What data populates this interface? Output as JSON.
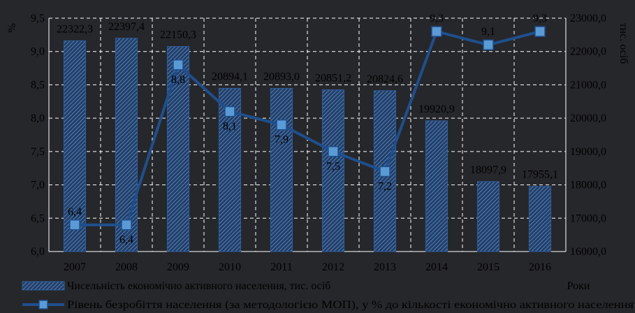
{
  "chart_data": {
    "type": "bar",
    "categories": [
      "2007",
      "2008",
      "2009",
      "2010",
      "2011",
      "2012",
      "2013",
      "2014",
      "2015",
      "2016"
    ],
    "series": [
      {
        "name": "Чисельність економічно активного населення, тис. осіб",
        "type": "bar",
        "axis": "right",
        "values": [
          22322.3,
          22397.4,
          22150.3,
          20894.1,
          20893.0,
          20851.2,
          20824.6,
          19920.9,
          18097.9,
          17955.1
        ],
        "labels": [
          "22322,3",
          "22397,4",
          "22150,3",
          "20894,1",
          "20893,0",
          "20851,2",
          "20824,6",
          "19920,9",
          "18097,9",
          "17955,1"
        ]
      },
      {
        "name": "Рівень безробіття населення (за методологією МОП), у % до кількості економічно активного населення",
        "type": "line",
        "axis": "left",
        "values": [
          6.4,
          6.4,
          8.8,
          8.1,
          7.9,
          7.5,
          7.2,
          9.3,
          9.1,
          9.3
        ],
        "labels": [
          "6,4",
          "6,4",
          "8,8",
          "8,1",
          "7,9",
          "7,5",
          "7,2",
          "9,3",
          "9,1",
          "9,3"
        ]
      }
    ],
    "left_axis": {
      "label": "%",
      "min": 6.0,
      "max": 9.5,
      "ticks": [
        6.0,
        6.5,
        7.0,
        7.5,
        8.0,
        8.5,
        9.0,
        9.5
      ],
      "tick_labels": [
        "6,0",
        "6,5",
        "7,0",
        "7,5",
        "8,0",
        "8,5",
        "9,0",
        "9,5"
      ]
    },
    "right_axis": {
      "label": "тис. осіб",
      "min": 16000,
      "max": 23000,
      "ticks": [
        16000,
        17000,
        18000,
        19000,
        20000,
        21000,
        22000,
        23000
      ],
      "tick_labels": [
        "16000,0",
        "17000,0",
        "18000,0",
        "19000,0",
        "20000,0",
        "21000,0",
        "22000,0",
        "23000,0"
      ]
    },
    "xlabel": "Роки",
    "grid": true,
    "legend_position": "bottom-left",
    "colors": {
      "background": "#26272b",
      "bar": "#1f3f6a",
      "bar_hatch": "#6e8fc0",
      "line": "#1f4f8c",
      "marker": "#5b9bd5",
      "grid": "#ffffff",
      "text": "#000000"
    }
  }
}
